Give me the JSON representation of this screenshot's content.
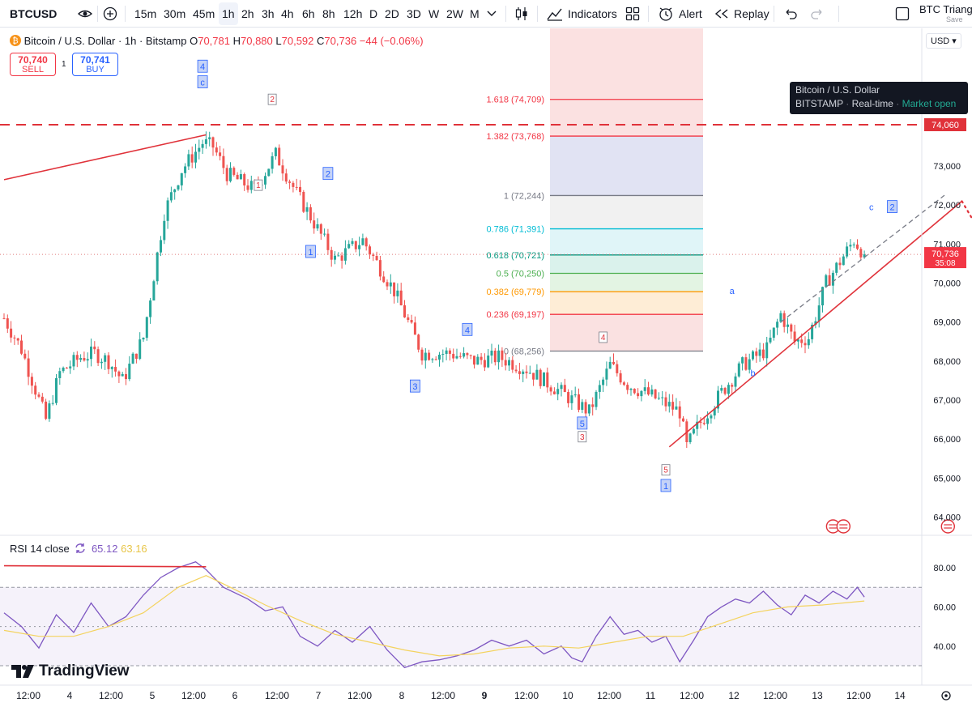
{
  "toolbar": {
    "symbol": "BTCUSD",
    "intervals": [
      "15m",
      "30m",
      "45m",
      "1h",
      "2h",
      "3h",
      "4h",
      "6h",
      "8h",
      "12h",
      "D",
      "2D",
      "3D",
      "W",
      "2W",
      "M"
    ],
    "active_interval": "1h",
    "indicators_label": "Indicators",
    "alert_label": "Alert",
    "replay_label": "Replay",
    "layout_name": "BTC Triangl",
    "save_label": "Save",
    "icons": [
      "compare-icon",
      "add-icon",
      "chevron-down-icon",
      "candles-icon",
      "indicators-icon",
      "templates-icon",
      "alert-icon",
      "replay-icon",
      "undo-icon",
      "redo-icon",
      "checkbox-icon"
    ]
  },
  "legend": {
    "title": "Bitcoin / U.S. Dollar · 1h · Bitstamp",
    "o_label": "O",
    "o": "70,781",
    "h_label": "H",
    "h": "70,880",
    "l_label": "L",
    "l": "70,592",
    "c_label": "C",
    "c": "70,736",
    "change": "−44 (−0.06%)",
    "sell_price": "70,740",
    "sell_label": "SELL",
    "buy_price": "70,741",
    "buy_label": "BUY",
    "qty": "1"
  },
  "currency": "USD",
  "tooltip": {
    "title": "Bitcoin / U.S. Dollar",
    "exchange": "BITSTAMP",
    "feed": "Real-time",
    "status": "Market open"
  },
  "rsi_legend": {
    "label": "RSI 14 close",
    "rsi_value": "65.12",
    "ma_value": "63.16"
  },
  "brand": "TradingView",
  "colors": {
    "up": "#26a69a",
    "down": "#ef5350",
    "wave_line": "#e0323a",
    "rsi": "#7e57c2",
    "rsi_ma": "#f4d35e",
    "blue_label": "#2962ff",
    "tooltip_bg": "#131722"
  },
  "chart_data": [
    {
      "type": "candlestick",
      "title": "Bitcoin / U.S. Dollar · 1h · Bitstamp",
      "ylim": [
        63400,
        75800
      ],
      "y_ticks": [
        64000,
        65000,
        66000,
        67000,
        68000,
        69000,
        70000,
        71000,
        72000,
        73000
      ],
      "x_tick_labels": [
        "12:00",
        "4",
        "12:00",
        "5",
        "12:00",
        "6",
        "12:00",
        "7",
        "12:00",
        "8",
        "12:00",
        "9",
        "12:00",
        "10",
        "12:00",
        "11",
        "12:00",
        "12",
        "12:00",
        "13",
        "12:00",
        "14"
      ],
      "last_price": "70,736",
      "last_price_countdown": "35:08",
      "resistance_level": 74060,
      "resistance_label": "74,060",
      "price_anchors": [
        {
          "t": 0,
          "p": 69100
        },
        {
          "t": 5,
          "p": 68300
        },
        {
          "t": 12,
          "p": 66500
        },
        {
          "t": 16,
          "p": 67700
        },
        {
          "t": 22,
          "p": 68100
        },
        {
          "t": 26,
          "p": 68200
        },
        {
          "t": 30,
          "p": 68000
        },
        {
          "t": 34,
          "p": 67500
        },
        {
          "t": 40,
          "p": 68600
        },
        {
          "t": 46,
          "p": 71800
        },
        {
          "t": 51,
          "p": 72900
        },
        {
          "t": 57,
          "p": 73600
        },
        {
          "t": 60,
          "p": 73500
        },
        {
          "t": 64,
          "p": 72800
        },
        {
          "t": 72,
          "p": 72400
        },
        {
          "t": 78,
          "p": 73300
        },
        {
          "t": 84,
          "p": 72300
        },
        {
          "t": 88,
          "p": 71700
        },
        {
          "t": 95,
          "p": 70600
        },
        {
          "t": 103,
          "p": 71100
        },
        {
          "t": 112,
          "p": 69800
        },
        {
          "t": 120,
          "p": 68200
        },
        {
          "t": 128,
          "p": 68200
        },
        {
          "t": 135,
          "p": 68000
        },
        {
          "t": 142,
          "p": 68100
        },
        {
          "t": 150,
          "p": 67800
        },
        {
          "t": 160,
          "p": 67200
        },
        {
          "t": 168,
          "p": 66700
        },
        {
          "t": 174,
          "p": 67900
        },
        {
          "t": 179,
          "p": 67400
        },
        {
          "t": 186,
          "p": 67100
        },
        {
          "t": 194,
          "p": 66700
        },
        {
          "t": 196,
          "p": 65800
        },
        {
          "t": 199,
          "p": 66300
        },
        {
          "t": 206,
          "p": 67200
        },
        {
          "t": 212,
          "p": 67900
        },
        {
          "t": 219,
          "p": 68300
        },
        {
          "t": 223,
          "p": 69200
        },
        {
          "t": 227,
          "p": 68500
        },
        {
          "t": 231,
          "p": 68600
        },
        {
          "t": 236,
          "p": 70000
        },
        {
          "t": 244,
          "p": 71100
        },
        {
          "t": 247,
          "p": 70736
        }
      ],
      "fibonacci": [
        {
          "ratio": "0",
          "price": 68256,
          "label": "0 (68,256)",
          "color": "#787b86"
        },
        {
          "ratio": "0.236",
          "price": 69197,
          "label": "0.236 (69,197)",
          "color": "#f23645"
        },
        {
          "ratio": "0.382",
          "price": 69779,
          "label": "0.382 (69,779)",
          "color": "#ff9800"
        },
        {
          "ratio": "0.5",
          "price": 70250,
          "label": "0.5 (70,250)",
          "color": "#4caf50"
        },
        {
          "ratio": "0.618",
          "price": 70721,
          "label": "0.618 (70,721)",
          "color": "#089981"
        },
        {
          "ratio": "0.786",
          "price": 71391,
          "label": "0.786 (71,391)",
          "color": "#00bcd4"
        },
        {
          "ratio": "1",
          "price": 72244,
          "label": "1 (72,244)",
          "color": "#787b86"
        },
        {
          "ratio": "1.382",
          "price": 73768,
          "label": "1.382 (73,768)",
          "color": "#f23645"
        },
        {
          "ratio": "1.618",
          "price": 74709,
          "label": "1.618 (74,709)",
          "color": "#f23645"
        }
      ],
      "wave_labels": [
        {
          "text": "4",
          "t": 57,
          "p": 75550,
          "style": "blue-box"
        },
        {
          "text": "c",
          "t": 57,
          "p": 75150,
          "style": "blue-box"
        },
        {
          "text": "2",
          "t": 77,
          "p": 74700,
          "style": "red-box"
        },
        {
          "text": "1",
          "t": 73,
          "p": 72500,
          "style": "red-box"
        },
        {
          "text": "2",
          "t": 93,
          "p": 72800,
          "style": "blue-box"
        },
        {
          "text": "1",
          "t": 88,
          "p": 70800,
          "style": "blue-box"
        },
        {
          "text": "4",
          "t": 133,
          "p": 68800,
          "style": "blue-box"
        },
        {
          "text": "3",
          "t": 118,
          "p": 67350,
          "style": "blue-box"
        },
        {
          "text": "4",
          "t": 172,
          "p": 68600,
          "style": "red-box"
        },
        {
          "text": "5",
          "t": 166,
          "p": 66400,
          "style": "blue-box"
        },
        {
          "text": "3",
          "t": 166,
          "p": 66050,
          "style": "red-box"
        },
        {
          "text": "5",
          "t": 190,
          "p": 65200,
          "style": "red-box"
        },
        {
          "text": "1",
          "t": 190,
          "p": 64800,
          "style": "blue-box"
        },
        {
          "text": "a",
          "t": 209,
          "p": 69800,
          "style": "blue-text"
        },
        {
          "text": "b",
          "t": 215,
          "p": 67700,
          "style": "blue-text"
        },
        {
          "text": "c",
          "t": 249,
          "p": 71950,
          "style": "blue-text"
        },
        {
          "text": "2",
          "t": 255,
          "p": 71950,
          "style": "blue-box"
        }
      ],
      "trend_lines": [
        {
          "from": {
            "t": 0,
            "p": 72650
          },
          "to": {
            "t": 58,
            "p": 73800
          },
          "style": "solid"
        },
        {
          "from": {
            "t": 191,
            "p": 65800
          },
          "to": {
            "t": 275,
            "p": 72100
          },
          "style": "solid"
        },
        {
          "from": {
            "t": 223,
            "p": 69000
          },
          "to": {
            "t": 270,
            "p": 72250
          },
          "style": "dashed"
        },
        {
          "from": {
            "t": 275,
            "p": 72100
          },
          "to": {
            "t": 331,
            "p": 63600
          },
          "style": "dotted"
        }
      ],
      "event_markers_t": [
        238,
        241,
        271,
        303,
        336,
        339
      ]
    },
    {
      "type": "line",
      "title": "RSI 14 close",
      "ylim": [
        25,
        90
      ],
      "y_ticks": [
        40,
        60,
        80
      ],
      "bands": [
        30,
        50,
        70
      ],
      "series": [
        {
          "name": "RSI",
          "points": [
            {
              "t": 0,
              "v": 57
            },
            {
              "t": 5,
              "v": 50
            },
            {
              "t": 10,
              "v": 39
            },
            {
              "t": 15,
              "v": 56
            },
            {
              "t": 20,
              "v": 47
            },
            {
              "t": 25,
              "v": 62
            },
            {
              "t": 30,
              "v": 50
            },
            {
              "t": 35,
              "v": 55
            },
            {
              "t": 40,
              "v": 66
            },
            {
              "t": 45,
              "v": 75
            },
            {
              "t": 50,
              "v": 80
            },
            {
              "t": 55,
              "v": 83
            },
            {
              "t": 58,
              "v": 79
            },
            {
              "t": 63,
              "v": 70
            },
            {
              "t": 70,
              "v": 64
            },
            {
              "t": 75,
              "v": 58
            },
            {
              "t": 80,
              "v": 60
            },
            {
              "t": 85,
              "v": 45
            },
            {
              "t": 90,
              "v": 40
            },
            {
              "t": 95,
              "v": 48
            },
            {
              "t": 100,
              "v": 42
            },
            {
              "t": 105,
              "v": 50
            },
            {
              "t": 110,
              "v": 38
            },
            {
              "t": 115,
              "v": 29
            },
            {
              "t": 120,
              "v": 32
            },
            {
              "t": 125,
              "v": 33
            },
            {
              "t": 130,
              "v": 35
            },
            {
              "t": 135,
              "v": 38
            },
            {
              "t": 140,
              "v": 43
            },
            {
              "t": 145,
              "v": 40
            },
            {
              "t": 150,
              "v": 43
            },
            {
              "t": 155,
              "v": 36
            },
            {
              "t": 160,
              "v": 40
            },
            {
              "t": 163,
              "v": 34
            },
            {
              "t": 166,
              "v": 32
            },
            {
              "t": 170,
              "v": 45
            },
            {
              "t": 174,
              "v": 55
            },
            {
              "t": 178,
              "v": 46
            },
            {
              "t": 182,
              "v": 48
            },
            {
              "t": 186,
              "v": 42
            },
            {
              "t": 190,
              "v": 45
            },
            {
              "t": 194,
              "v": 32
            },
            {
              "t": 198,
              "v": 43
            },
            {
              "t": 202,
              "v": 55
            },
            {
              "t": 206,
              "v": 60
            },
            {
              "t": 210,
              "v": 64
            },
            {
              "t": 214,
              "v": 62
            },
            {
              "t": 218,
              "v": 68
            },
            {
              "t": 222,
              "v": 61
            },
            {
              "t": 226,
              "v": 56
            },
            {
              "t": 230,
              "v": 66
            },
            {
              "t": 234,
              "v": 62
            },
            {
              "t": 238,
              "v": 68
            },
            {
              "t": 242,
              "v": 64
            },
            {
              "t": 245,
              "v": 70
            },
            {
              "t": 247,
              "v": 65
            }
          ]
        },
        {
          "name": "RSI-based MA",
          "points": [
            {
              "t": 0,
              "v": 48
            },
            {
              "t": 10,
              "v": 45
            },
            {
              "t": 20,
              "v": 45
            },
            {
              "t": 30,
              "v": 50
            },
            {
              "t": 40,
              "v": 57
            },
            {
              "t": 50,
              "v": 70
            },
            {
              "t": 58,
              "v": 76
            },
            {
              "t": 65,
              "v": 70
            },
            {
              "t": 75,
              "v": 61
            },
            {
              "t": 85,
              "v": 53
            },
            {
              "t": 95,
              "v": 46
            },
            {
              "t": 105,
              "v": 42
            },
            {
              "t": 115,
              "v": 38
            },
            {
              "t": 125,
              "v": 35
            },
            {
              "t": 135,
              "v": 36
            },
            {
              "t": 145,
              "v": 39
            },
            {
              "t": 155,
              "v": 40
            },
            {
              "t": 165,
              "v": 39
            },
            {
              "t": 175,
              "v": 42
            },
            {
              "t": 185,
              "v": 45
            },
            {
              "t": 195,
              "v": 45
            },
            {
              "t": 205,
              "v": 51
            },
            {
              "t": 215,
              "v": 57
            },
            {
              "t": 225,
              "v": 60
            },
            {
              "t": 235,
              "v": 61
            },
            {
              "t": 247,
              "v": 63
            }
          ]
        }
      ],
      "divergence_line": [
        {
          "t": 0,
          "v": 81
        },
        {
          "t": 58,
          "v": 80.5
        }
      ]
    }
  ]
}
